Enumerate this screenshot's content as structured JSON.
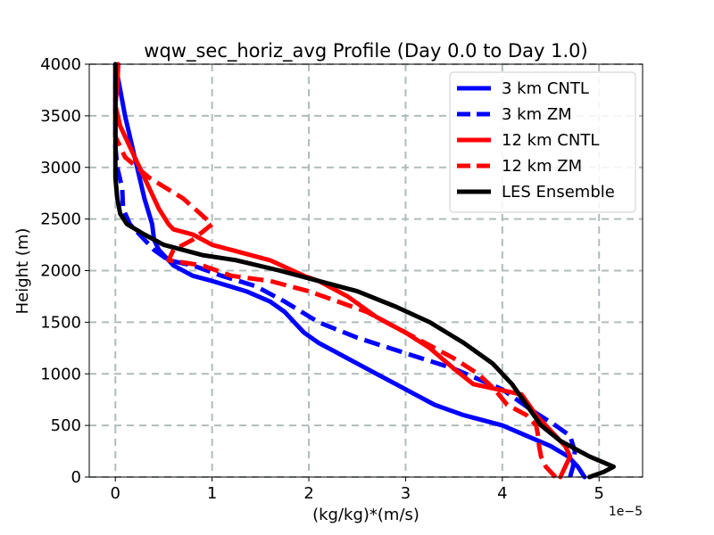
{
  "chart_data": {
    "type": "line",
    "title": "wqw_sec_horiz_avg Profile (Day 0.0 to Day 1.0)",
    "xlabel": "(kg/kg)*(m/s)",
    "ylabel": "Height (m)",
    "x_offset_label": "1e−5",
    "xlim": [
      -0.27,
      5.45
    ],
    "ylim": [
      0,
      4000
    ],
    "xticks": [
      0,
      1,
      2,
      3,
      4,
      5
    ],
    "xtick_labels": [
      "0",
      "1",
      "2",
      "3",
      "4",
      "5"
    ],
    "yticks": [
      0,
      500,
      1000,
      1500,
      2000,
      2500,
      3000,
      3500,
      4000
    ],
    "ytick_labels": [
      "0",
      "500",
      "1000",
      "1500",
      "2000",
      "2500",
      "3000",
      "3500",
      "4000"
    ],
    "grid": true,
    "legend_position": "top-right",
    "series": [
      {
        "name": "3 km CNTL",
        "color": "#0000ff",
        "dash": "solid",
        "points": [
          [
            4.85,
            0
          ],
          [
            4.78,
            100
          ],
          [
            4.68,
            200
          ],
          [
            4.5,
            300
          ],
          [
            4.25,
            400
          ],
          [
            4.0,
            500
          ],
          [
            3.6,
            600
          ],
          [
            3.3,
            700
          ],
          [
            3.1,
            800
          ],
          [
            2.9,
            900
          ],
          [
            2.7,
            1000
          ],
          [
            2.5,
            1100
          ],
          [
            2.3,
            1200
          ],
          [
            2.1,
            1300
          ],
          [
            1.95,
            1400
          ],
          [
            1.85,
            1500
          ],
          [
            1.75,
            1600
          ],
          [
            1.6,
            1700
          ],
          [
            1.35,
            1800
          ],
          [
            1.0,
            1900
          ],
          [
            0.8,
            1950
          ],
          [
            0.6,
            2050
          ],
          [
            0.45,
            2200
          ],
          [
            0.4,
            2300
          ],
          [
            0.38,
            2450
          ],
          [
            0.3,
            2700
          ],
          [
            0.25,
            2900
          ],
          [
            0.2,
            3100
          ],
          [
            0.15,
            3300
          ],
          [
            0.1,
            3500
          ],
          [
            0.06,
            3700
          ],
          [
            0.02,
            3900
          ],
          [
            0.0,
            4000
          ]
        ]
      },
      {
        "name": "3 km ZM",
        "color": "#0000ff",
        "dash": "dashed",
        "points": [
          [
            4.7,
            0
          ],
          [
            4.73,
            100
          ],
          [
            4.75,
            250
          ],
          [
            4.7,
            400
          ],
          [
            4.55,
            500
          ],
          [
            4.3,
            650
          ],
          [
            4.0,
            850
          ],
          [
            3.5,
            1050
          ],
          [
            3.0,
            1200
          ],
          [
            2.5,
            1350
          ],
          [
            2.1,
            1500
          ],
          [
            1.75,
            1700
          ],
          [
            1.45,
            1850
          ],
          [
            1.1,
            1950
          ],
          [
            0.8,
            2050
          ],
          [
            0.55,
            2100
          ],
          [
            0.4,
            2200
          ],
          [
            0.3,
            2300
          ],
          [
            0.15,
            2450
          ],
          [
            0.08,
            2600
          ],
          [
            0.07,
            2800
          ],
          [
            0.02,
            3000
          ],
          [
            0.0,
            3200
          ],
          [
            0.0,
            3500
          ],
          [
            0.0,
            3800
          ],
          [
            0.0,
            4000
          ]
        ]
      },
      {
        "name": "12 km CNTL",
        "color": "#ff0000",
        "dash": "solid",
        "points": [
          [
            4.6,
            0
          ],
          [
            4.65,
            100
          ],
          [
            4.7,
            200
          ],
          [
            4.65,
            300
          ],
          [
            4.55,
            400
          ],
          [
            4.35,
            600
          ],
          [
            4.2,
            800
          ],
          [
            3.7,
            900
          ],
          [
            3.5,
            1050
          ],
          [
            3.25,
            1250
          ],
          [
            3.0,
            1400
          ],
          [
            2.7,
            1550
          ],
          [
            2.4,
            1750
          ],
          [
            2.1,
            1900
          ],
          [
            1.95,
            1950
          ],
          [
            1.6,
            2100
          ],
          [
            1.2,
            2200
          ],
          [
            1.0,
            2250
          ],
          [
            0.8,
            2350
          ],
          [
            0.6,
            2400
          ],
          [
            0.55,
            2450
          ],
          [
            0.45,
            2600
          ],
          [
            0.35,
            2800
          ],
          [
            0.25,
            3000
          ],
          [
            0.15,
            3200
          ],
          [
            0.05,
            3400
          ],
          [
            0.0,
            3600
          ],
          [
            0.02,
            3800
          ],
          [
            0.03,
            4000
          ]
        ]
      },
      {
        "name": "12 km ZM",
        "color": "#ff0000",
        "dash": "dashed",
        "points": [
          [
            4.55,
            0
          ],
          [
            4.45,
            100
          ],
          [
            4.4,
            200
          ],
          [
            4.38,
            300
          ],
          [
            4.37,
            400
          ],
          [
            4.35,
            500
          ],
          [
            4.25,
            600
          ],
          [
            4.05,
            700
          ],
          [
            3.92,
            850
          ],
          [
            3.75,
            1000
          ],
          [
            3.5,
            1150
          ],
          [
            3.2,
            1300
          ],
          [
            2.9,
            1450
          ],
          [
            2.6,
            1600
          ],
          [
            2.3,
            1700
          ],
          [
            2.0,
            1800
          ],
          [
            1.6,
            1900
          ],
          [
            1.2,
            1950
          ],
          [
            0.9,
            2050
          ],
          [
            0.55,
            2100
          ],
          [
            0.6,
            2200
          ],
          [
            0.8,
            2300
          ],
          [
            1.0,
            2450
          ],
          [
            0.7,
            2700
          ],
          [
            0.35,
            2900
          ],
          [
            0.1,
            3100
          ],
          [
            0.0,
            3300
          ],
          [
            0.0,
            3600
          ],
          [
            0.0,
            4000
          ]
        ]
      },
      {
        "name": "LES Ensemble",
        "color": "#000000",
        "dash": "solid",
        "points": [
          [
            4.9,
            0
          ],
          [
            5.05,
            50
          ],
          [
            5.15,
            100
          ],
          [
            4.9,
            200
          ],
          [
            4.6,
            350
          ],
          [
            4.4,
            500
          ],
          [
            4.25,
            700
          ],
          [
            4.1,
            900
          ],
          [
            3.9,
            1100
          ],
          [
            3.6,
            1300
          ],
          [
            3.25,
            1500
          ],
          [
            2.9,
            1650
          ],
          [
            2.5,
            1800
          ],
          [
            2.1,
            1900
          ],
          [
            1.7,
            2000
          ],
          [
            1.25,
            2100
          ],
          [
            0.9,
            2150
          ],
          [
            0.5,
            2250
          ],
          [
            0.3,
            2350
          ],
          [
            0.12,
            2450
          ],
          [
            0.05,
            2550
          ],
          [
            0.02,
            2700
          ],
          [
            0.0,
            2900
          ],
          [
            0.0,
            3200
          ],
          [
            0.0,
            3500
          ],
          [
            0.0,
            3800
          ],
          [
            0.0,
            4000
          ]
        ]
      }
    ]
  }
}
